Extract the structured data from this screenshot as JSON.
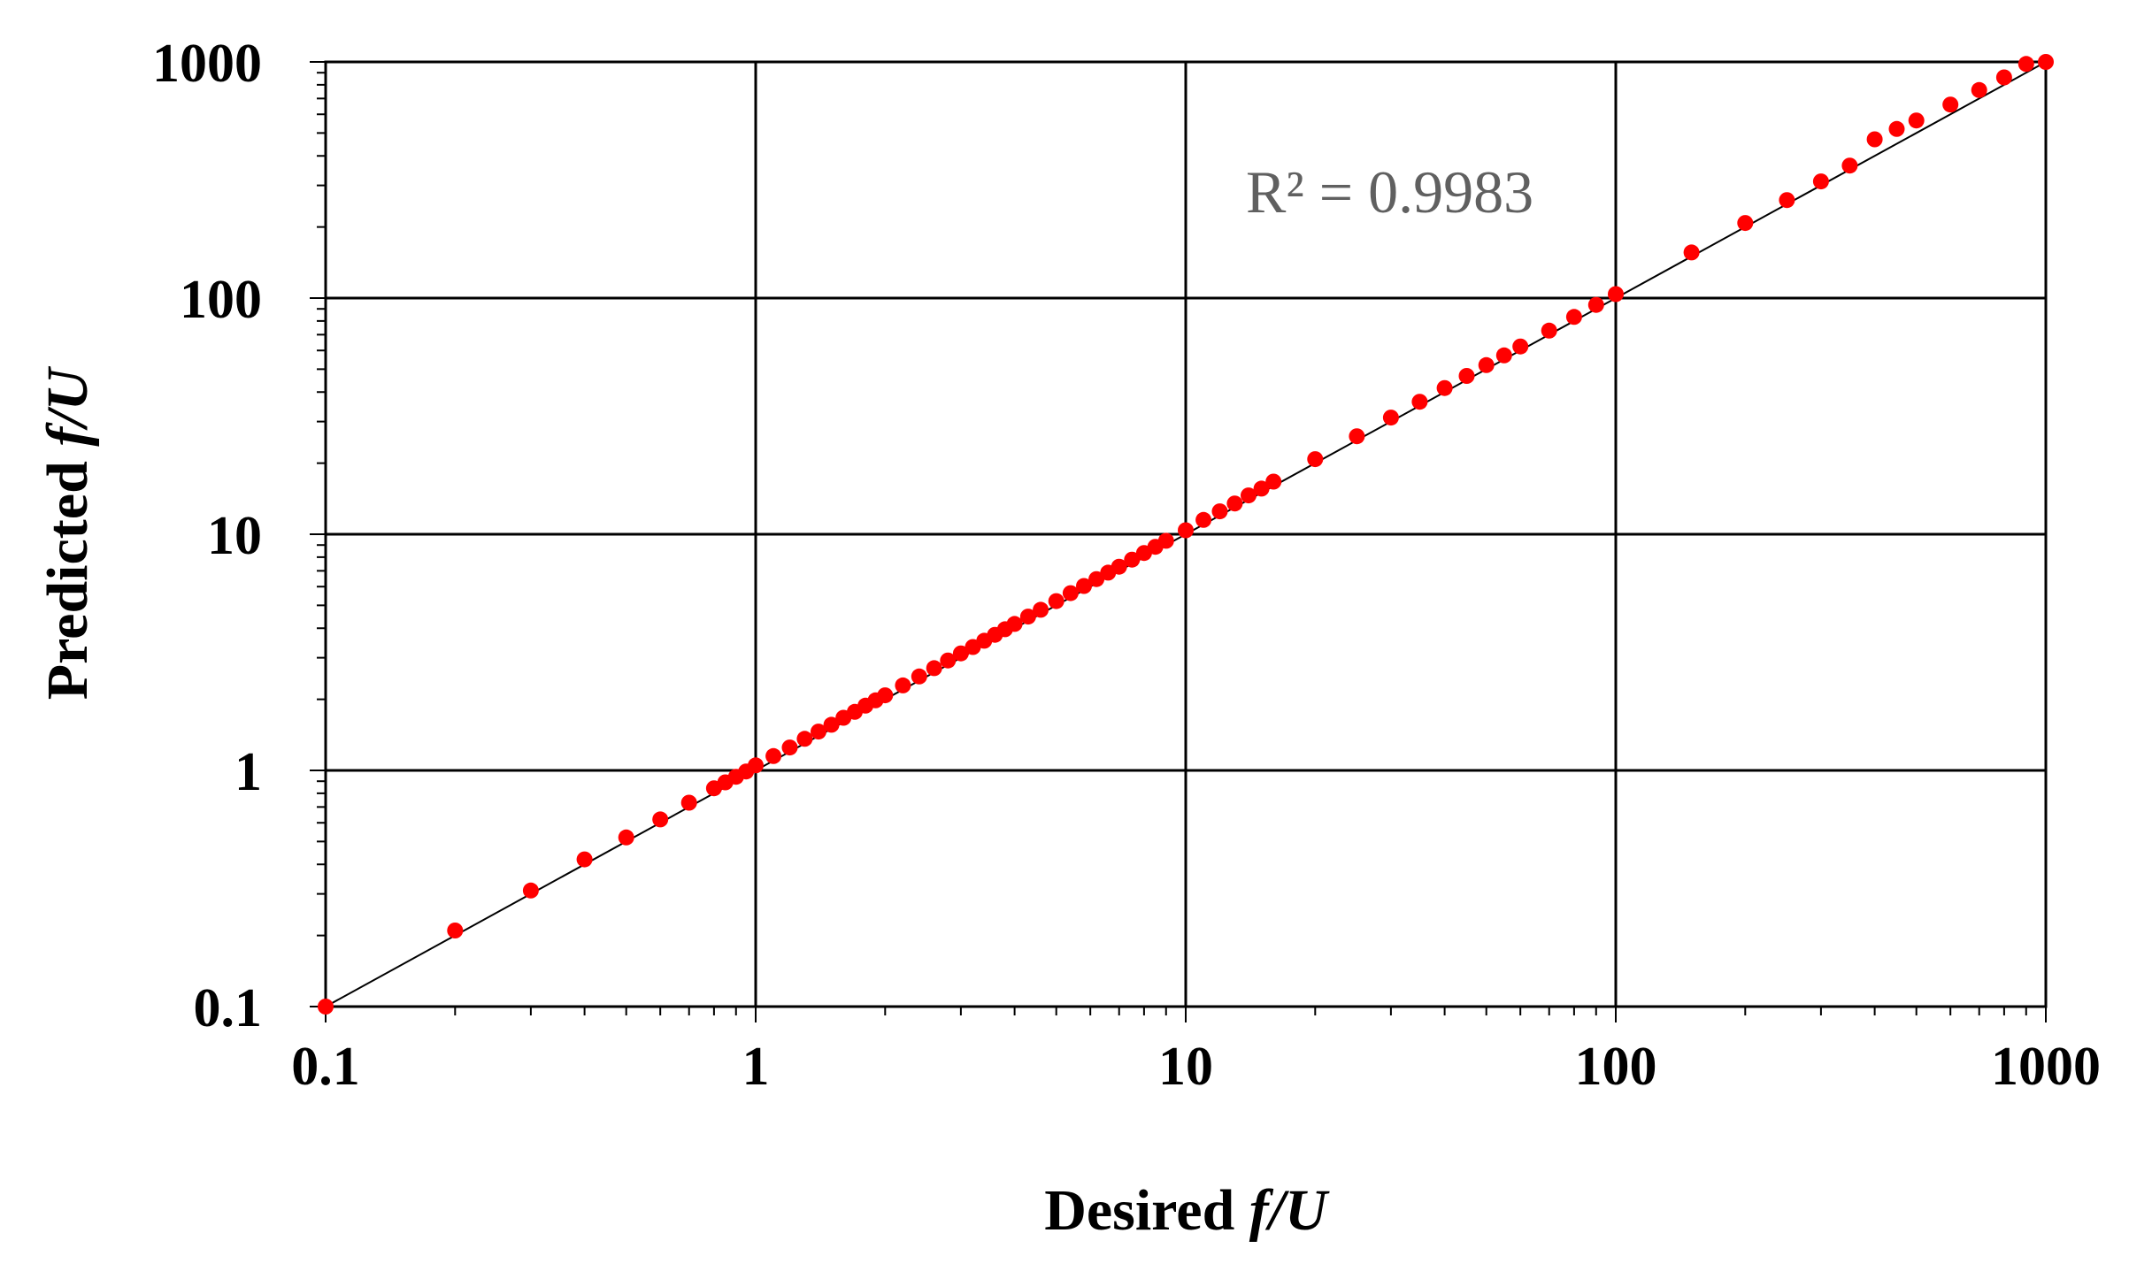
{
  "chart_data": {
    "type": "scatter",
    "title": "",
    "x_label": {
      "prefix": "Desired ",
      "variable": "f/U"
    },
    "y_label": {
      "prefix": "Predicted ",
      "variable": "f/U"
    },
    "x_scale": "log",
    "y_scale": "log",
    "xlim": [
      0.1,
      1000
    ],
    "ylim": [
      0.1,
      1000
    ],
    "x_ticks": [
      "0.1",
      "1",
      "10",
      "100",
      "1000"
    ],
    "y_ticks": [
      "0.1",
      "1",
      "10",
      "100",
      "1000"
    ],
    "grid": true,
    "annotation": {
      "text": "R² = 0.9983"
    },
    "reference_line": {
      "from": [
        0.1,
        0.1
      ],
      "to": [
        1000,
        1000
      ],
      "color": "#000000"
    },
    "marker_color": "#ff0000",
    "series": [
      {
        "x": [
          0.1,
          0.2,
          0.3,
          0.4,
          0.5,
          0.6,
          0.7,
          0.8,
          0.85,
          0.9,
          0.95,
          1.0,
          1.1,
          1.2,
          1.3,
          1.4,
          1.5,
          1.6,
          1.7,
          1.8,
          1.9,
          2.0,
          2.2,
          2.4,
          2.6,
          2.8,
          3.0,
          3.2,
          3.4,
          3.6,
          3.8,
          4.0,
          4.3,
          4.6,
          5.0,
          5.4,
          5.8,
          6.2,
          6.6,
          7.0,
          7.5,
          8.0,
          8.5,
          9.0,
          10,
          11,
          12,
          13,
          14,
          15,
          16,
          20,
          25,
          30,
          35,
          40,
          45,
          50,
          55,
          60,
          70,
          80,
          90,
          100,
          150,
          200,
          250,
          300,
          350,
          400,
          450,
          500,
          600,
          700,
          800,
          900,
          1000
        ],
        "y": [
          0.1,
          0.21,
          0.31,
          0.42,
          0.52,
          0.62,
          0.73,
          0.84,
          0.89,
          0.94,
          0.99,
          1.05,
          1.15,
          1.25,
          1.36,
          1.46,
          1.56,
          1.67,
          1.77,
          1.88,
          1.98,
          2.08,
          2.29,
          2.5,
          2.71,
          2.92,
          3.13,
          3.33,
          3.54,
          3.75,
          3.96,
          4.17,
          4.48,
          4.79,
          5.21,
          5.63,
          6.04,
          6.46,
          6.88,
          7.29,
          7.81,
          8.33,
          8.85,
          9.38,
          10.4,
          11.5,
          12.5,
          13.5,
          14.6,
          15.6,
          16.7,
          20.8,
          26,
          31.2,
          36.4,
          41.6,
          46.8,
          52,
          57.2,
          62.4,
          72.8,
          83.2,
          93.6,
          104,
          156,
          208,
          260,
          312,
          364,
          470,
          520,
          565,
          660,
          760,
          860,
          980,
          1000
        ]
      }
    ]
  }
}
